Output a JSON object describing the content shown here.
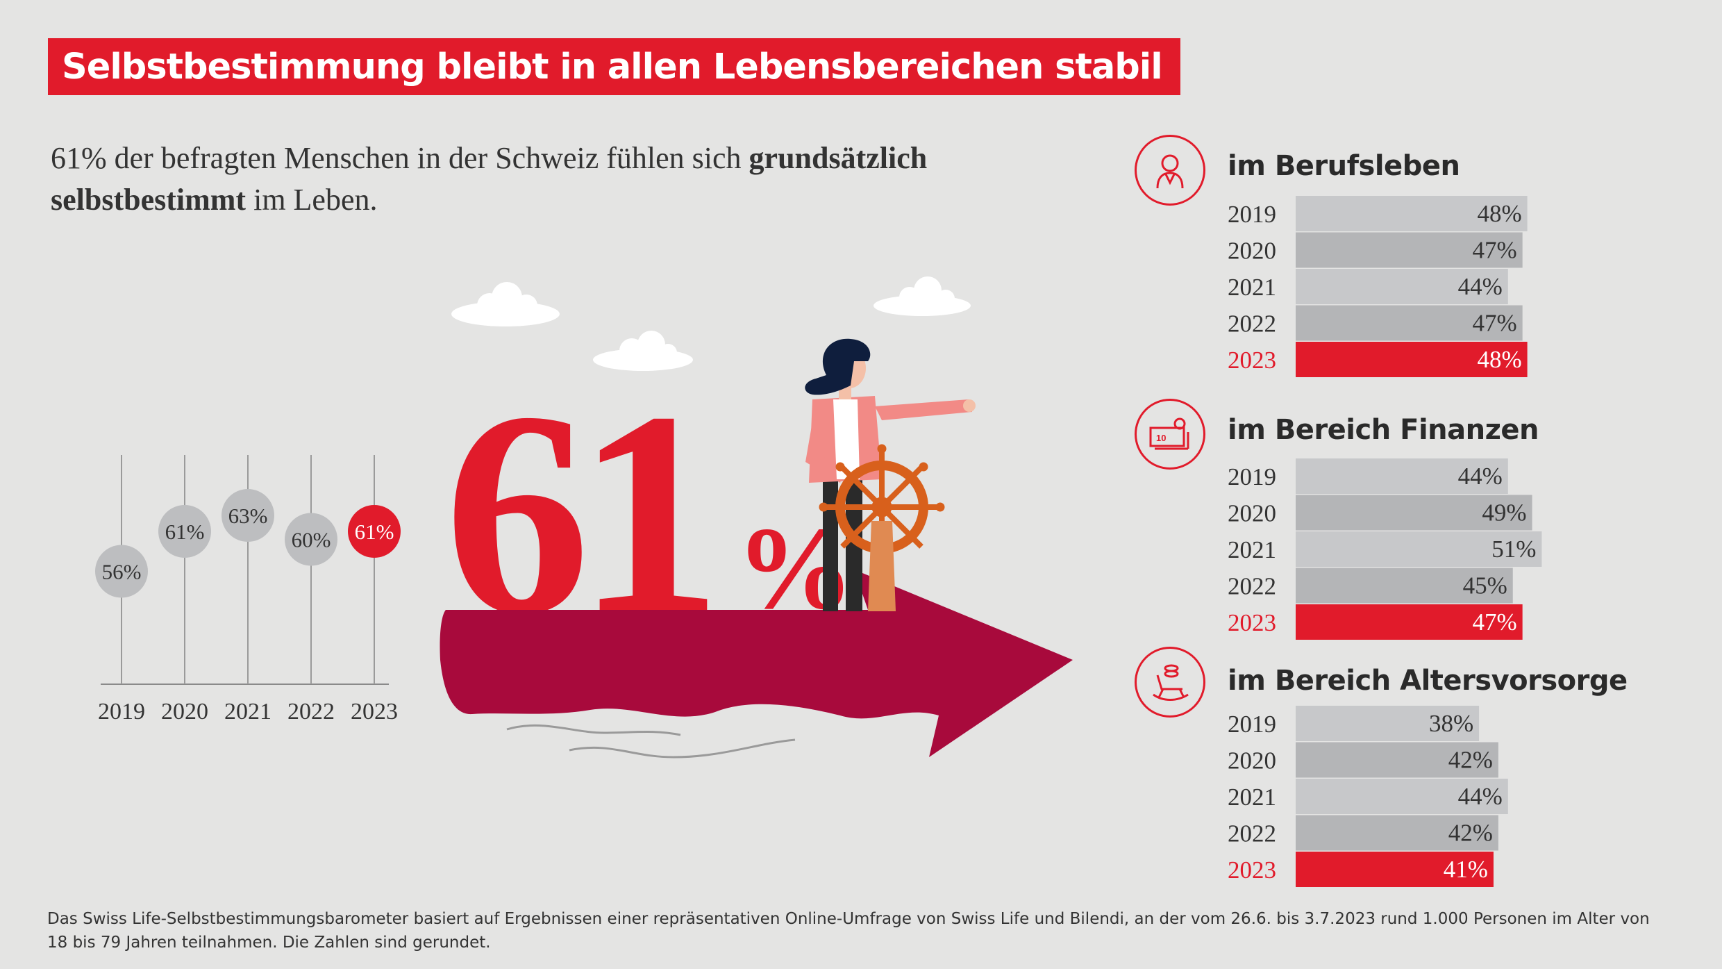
{
  "header": {
    "title": "Selbstbestimmung bleibt in allen Lebensbereichen stabil"
  },
  "intro": {
    "text_before": "61% der befragten Menschen in der Schweiz fühlen sich ",
    "text_bold": "grundsätzlich selbstbestimmt",
    "text_after": " im Leben."
  },
  "hero": {
    "number": "61",
    "percent_sign": "%"
  },
  "colors": {
    "accent": "#e11b2b",
    "bar_light": "#c7c8ca",
    "bar_dark": "#b4b5b7",
    "arrow": "#a80a3c"
  },
  "sections": [
    {
      "title": "im Berufsleben",
      "icon": "person-icon"
    },
    {
      "title": "im Bereich Finanzen",
      "icon": "banknote-icon"
    },
    {
      "title": "im Bereich Altersvorsorge",
      "icon": "rocking-chair-icon"
    }
  ],
  "footnote": "Das Swiss Life-Selbstbestimmungsbarometer basiert auf Ergebnissen einer repräsentativen Online-Umfrage von Swiss Life und Bilendi, an der vom 26.6. bis 3.7.2023 rund 1.000 Personen im Alter von 18 bis 79 Jahren teilnahmen. Die Zahlen sind gerundet.",
  "chart_data": [
    {
      "type": "lollipop",
      "title": "",
      "x": [
        "2019",
        "2020",
        "2021",
        "2022",
        "2023"
      ],
      "values": [
        56,
        61,
        63,
        60,
        61
      ],
      "labels": [
        "56%",
        "61%",
        "63%",
        "60%",
        "61%"
      ],
      "highlight": "2023"
    },
    {
      "type": "bar",
      "orientation": "horizontal",
      "title": "im Berufsleben",
      "categories": [
        "2019",
        "2020",
        "2021",
        "2022",
        "2023"
      ],
      "values": [
        48,
        47,
        44,
        47,
        48
      ],
      "labels": [
        "48%",
        "47%",
        "44%",
        "47%",
        "48%"
      ],
      "highlight": "2023"
    },
    {
      "type": "bar",
      "orientation": "horizontal",
      "title": "im Bereich Finanzen",
      "categories": [
        "2019",
        "2020",
        "2021",
        "2022",
        "2023"
      ],
      "values": [
        44,
        49,
        51,
        45,
        47
      ],
      "labels": [
        "44%",
        "49%",
        "51%",
        "45%",
        "47%"
      ],
      "highlight": "2023"
    },
    {
      "type": "bar",
      "orientation": "horizontal",
      "title": "im Bereich Altersvorsorge",
      "categories": [
        "2019",
        "2020",
        "2021",
        "2022",
        "2023"
      ],
      "values": [
        38,
        42,
        44,
        42,
        41
      ],
      "labels": [
        "38%",
        "42%",
        "44%",
        "42%",
        "41%"
      ],
      "highlight": "2023"
    }
  ]
}
